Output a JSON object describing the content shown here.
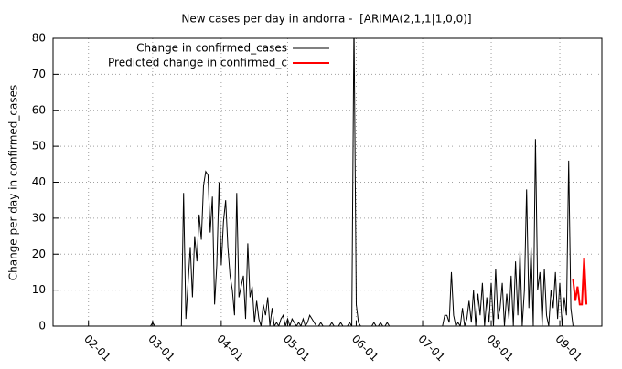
{
  "chart_data": {
    "type": "line",
    "title": "New cases per day in andorra -  [ARIMA(2,1,1|1,0,0)]",
    "y_label": "Change per day in confirmed_cases",
    "xlim": [
      "01-16",
      "09-20"
    ],
    "xticks": [
      "02-01",
      "03-01",
      "04-01",
      "05-01",
      "06-01",
      "07-01",
      "08-01",
      "09-01"
    ],
    "ylim": [
      0,
      80
    ],
    "yticks": [
      0,
      10,
      20,
      30,
      40,
      50,
      60,
      70,
      80
    ],
    "grid": true,
    "legend": "top",
    "series": [
      {
        "name": "Change in confirmed_cases",
        "color": "#000000",
        "x": [
          "02-28",
          "02-29",
          "03-01",
          "03-02",
          "03-03",
          "03-04",
          "03-05",
          "03-06",
          "03-07",
          "03-08",
          "03-09",
          "03-10",
          "03-11",
          "03-12",
          "03-13",
          "03-14",
          "03-15",
          "03-16",
          "03-17",
          "03-18",
          "03-19",
          "03-20",
          "03-21",
          "03-22",
          "03-23",
          "03-24",
          "03-25",
          "03-26",
          "03-27",
          "03-28",
          "03-29",
          "03-30",
          "03-31",
          "04-01",
          "04-02",
          "04-03",
          "04-04",
          "04-05",
          "04-06",
          "04-07",
          "04-08",
          "04-09",
          "04-10",
          "04-11",
          "04-12",
          "04-13",
          "04-14",
          "04-15",
          "04-16",
          "04-17",
          "04-18",
          "04-19",
          "04-20",
          "04-21",
          "04-22",
          "04-23",
          "04-24",
          "04-25",
          "04-26",
          "04-27",
          "04-28",
          "04-29",
          "04-30",
          "05-01",
          "05-02",
          "05-03",
          "05-04",
          "05-05",
          "05-06",
          "05-07",
          "05-08",
          "05-09",
          "05-10",
          "05-11",
          "05-12",
          "05-13",
          "05-14",
          "05-15",
          "05-16",
          "05-17",
          "05-18",
          "05-19",
          "05-20",
          "05-21",
          "05-22",
          "05-23",
          "05-24",
          "05-25",
          "05-26",
          "05-27",
          "05-28",
          "05-29",
          "05-30",
          "05-31",
          "06-01",
          "06-02",
          "06-03",
          "06-04",
          "06-05",
          "06-06",
          "06-07",
          "06-08",
          "06-09",
          "06-10",
          "06-11",
          "06-12",
          "06-13",
          "06-14",
          "06-15",
          "06-16",
          "06-17",
          "06-18",
          "06-19",
          "06-20",
          "06-21",
          "06-22",
          "06-23",
          "06-24",
          "06-25",
          "06-26",
          "06-27",
          "06-28",
          "06-29",
          "06-30",
          "07-01",
          "07-02",
          "07-03",
          "07-04",
          "07-05",
          "07-06",
          "07-07",
          "07-08",
          "07-09",
          "07-10",
          "07-11",
          "07-12",
          "07-13",
          "07-14",
          "07-15",
          "07-16",
          "07-17",
          "07-18",
          "07-19",
          "07-20",
          "07-21",
          "07-22",
          "07-23",
          "07-24",
          "07-25",
          "07-26",
          "07-27",
          "07-28",
          "07-29",
          "07-30",
          "07-31",
          "08-01",
          "08-02",
          "08-03",
          "08-04",
          "08-05",
          "08-06",
          "08-07",
          "08-08",
          "08-09",
          "08-10",
          "08-11",
          "08-12",
          "08-13",
          "08-14",
          "08-15",
          "08-16",
          "08-17",
          "08-18",
          "08-19",
          "08-20",
          "08-21",
          "08-22",
          "08-23",
          "08-24",
          "08-25",
          "08-26",
          "08-27",
          "08-28",
          "08-29",
          "08-30",
          "08-31",
          "09-01",
          "09-02",
          "09-03",
          "09-04",
          "09-05",
          "09-06",
          "09-07"
        ],
        "values": [
          0,
          0,
          1,
          0,
          0,
          0,
          0,
          0,
          0,
          0,
          0,
          0,
          0,
          0,
          0,
          0,
          37,
          2,
          12,
          22,
          8,
          25,
          18,
          31,
          24,
          39,
          43,
          42,
          26,
          36,
          6,
          17,
          40,
          17,
          29,
          35,
          22,
          14,
          10,
          3,
          37,
          8,
          11,
          14,
          2,
          23,
          8,
          11,
          1,
          7,
          2,
          0,
          6,
          3,
          8,
          0,
          5,
          0,
          1,
          0,
          2,
          3,
          0,
          2,
          0,
          2,
          1,
          0,
          1,
          0,
          2,
          0,
          1,
          3,
          2,
          1,
          0,
          0,
          1,
          0,
          0,
          0,
          0,
          1,
          0,
          0,
          0,
          1,
          0,
          0,
          0,
          1,
          0,
          85,
          6,
          1,
          0,
          0,
          0,
          0,
          0,
          0,
          1,
          0,
          0,
          1,
          0,
          0,
          1,
          0,
          0,
          0,
          0,
          0,
          0,
          0,
          0,
          0,
          0,
          0,
          0,
          0,
          0,
          0,
          0,
          0,
          0,
          0,
          0,
          0,
          0,
          0,
          0,
          0,
          3,
          3,
          1,
          15,
          3,
          0,
          1,
          0,
          5,
          0,
          2,
          7,
          1,
          10,
          0,
          9,
          3,
          12,
          0,
          8,
          1,
          12,
          0,
          16,
          2,
          5,
          12,
          0,
          9,
          2,
          14,
          0,
          18,
          3,
          21,
          0,
          10,
          38,
          5,
          22,
          0,
          52,
          10,
          15,
          0,
          16,
          3,
          0,
          10,
          5,
          15,
          2,
          12,
          0,
          8,
          3,
          46,
          5,
          0
        ]
      },
      {
        "name": "Predicted change in confirmed_c",
        "color": "#ff0000",
        "x": [
          "09-07",
          "09-08",
          "09-09",
          "09-10",
          "09-11",
          "09-12",
          "09-13"
        ],
        "values": [
          13,
          7,
          11,
          6,
          6,
          19,
          6
        ]
      }
    ]
  }
}
